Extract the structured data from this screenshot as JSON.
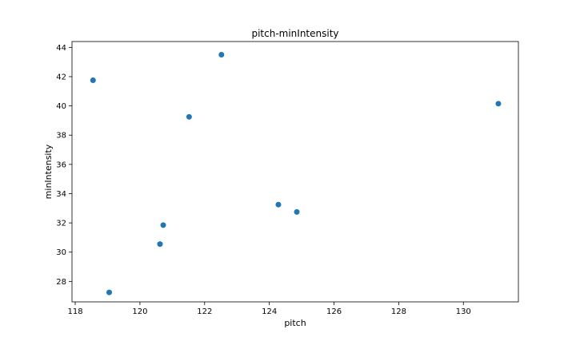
{
  "chart_data": {
    "type": "scatter",
    "title": "pitch-minIntensity",
    "xlabel": "pitch",
    "ylabel": "minIntensity",
    "xlim": [
      117.9,
      131.7
    ],
    "ylim": [
      26.6,
      44.4
    ],
    "xticks": [
      118,
      120,
      122,
      124,
      126,
      128,
      130
    ],
    "yticks": [
      28,
      30,
      32,
      34,
      36,
      38,
      40,
      42,
      44
    ],
    "grid": false,
    "marker_color": "#1f77b4",
    "series": [
      {
        "points": [
          {
            "x": 118.55,
            "y": 41.75
          },
          {
            "x": 119.05,
            "y": 27.25
          },
          {
            "x": 120.62,
            "y": 30.55
          },
          {
            "x": 120.72,
            "y": 31.85
          },
          {
            "x": 121.52,
            "y": 39.25
          },
          {
            "x": 122.52,
            "y": 43.5
          },
          {
            "x": 124.28,
            "y": 33.25
          },
          {
            "x": 124.85,
            "y": 32.75
          },
          {
            "x": 131.08,
            "y": 40.15
          }
        ]
      }
    ]
  }
}
